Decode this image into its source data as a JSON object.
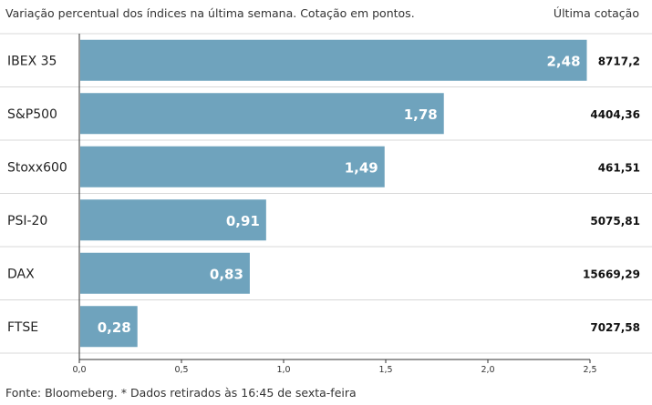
{
  "header": {
    "subtitle": "Variação percentual dos índices na última semana. Cotação em pontos.",
    "last_price_label": "Última cotação"
  },
  "footer": {
    "source": "Fonte: Bloomeberg. * Dados retirados às 16:45 de sexta-feira"
  },
  "colors": {
    "bar": "#6fa3bd",
    "grid": "#d8d8d8",
    "axis": "#333333"
  },
  "chart_data": {
    "type": "bar",
    "orientation": "horizontal",
    "title": "Variação percentual dos índices na última semana. Cotação em pontos.",
    "categories": [
      "IBEX 35",
      "S&P500",
      "Stoxx600",
      "PSI-20",
      "DAX",
      "FTSE"
    ],
    "values": [
      2.48,
      1.78,
      1.49,
      0.91,
      0.83,
      0.28
    ],
    "value_labels": [
      "2,48",
      "1,78",
      "1,49",
      "0,91",
      "0,83",
      "0,28"
    ],
    "last_prices": [
      "8717,2",
      "4404,36",
      "461,51",
      "5075,81",
      "15669,29",
      "7027,58"
    ],
    "xlim": [
      0,
      2.5
    ],
    "x_ticks": [
      0,
      0.5,
      1,
      1.5,
      2,
      2.5
    ],
    "x_tick_labels": [
      "0,0",
      "0,5",
      "1,0",
      "1,5",
      "2,0",
      "2,5"
    ],
    "xlabel": "",
    "ylabel": ""
  }
}
